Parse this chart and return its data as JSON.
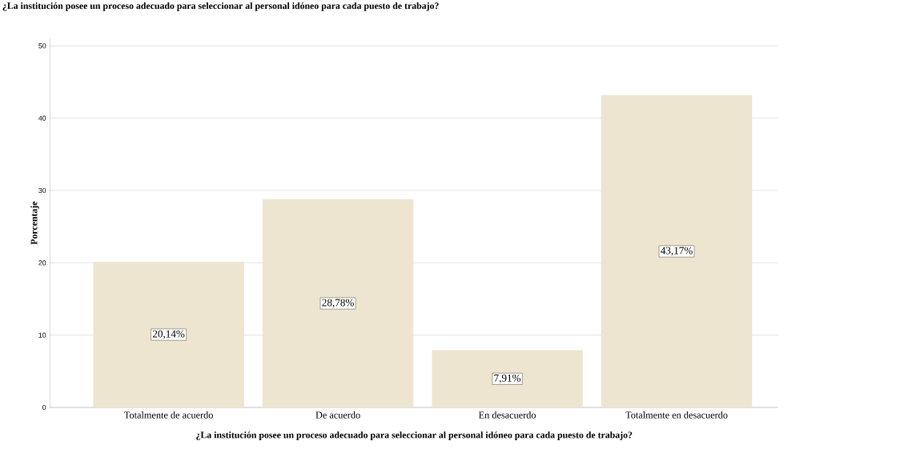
{
  "chart_data": {
    "type": "bar",
    "title": "¿La institución posee un proceso adecuado para seleccionar al personal idóneo para cada puesto de trabajo?",
    "xlabel": "¿La institución posee un proceso adecuado para seleccionar al personal idóneo para cada puesto de trabajo?",
    "ylabel": "Porcentaje",
    "categories": [
      "Totalmente de acuerdo",
      "De acuerdo",
      "En desacuerdo",
      "Totalmente en desacuerdo"
    ],
    "values": [
      20.14,
      28.78,
      7.91,
      43.17
    ],
    "value_labels": [
      "20,14%",
      "28,78%",
      "7,91%",
      "43,17%"
    ],
    "color": "#eee5d0",
    "ylim": [
      0,
      51
    ],
    "yticks": [
      0,
      10,
      20,
      30,
      40,
      50
    ],
    "grid": "y"
  }
}
